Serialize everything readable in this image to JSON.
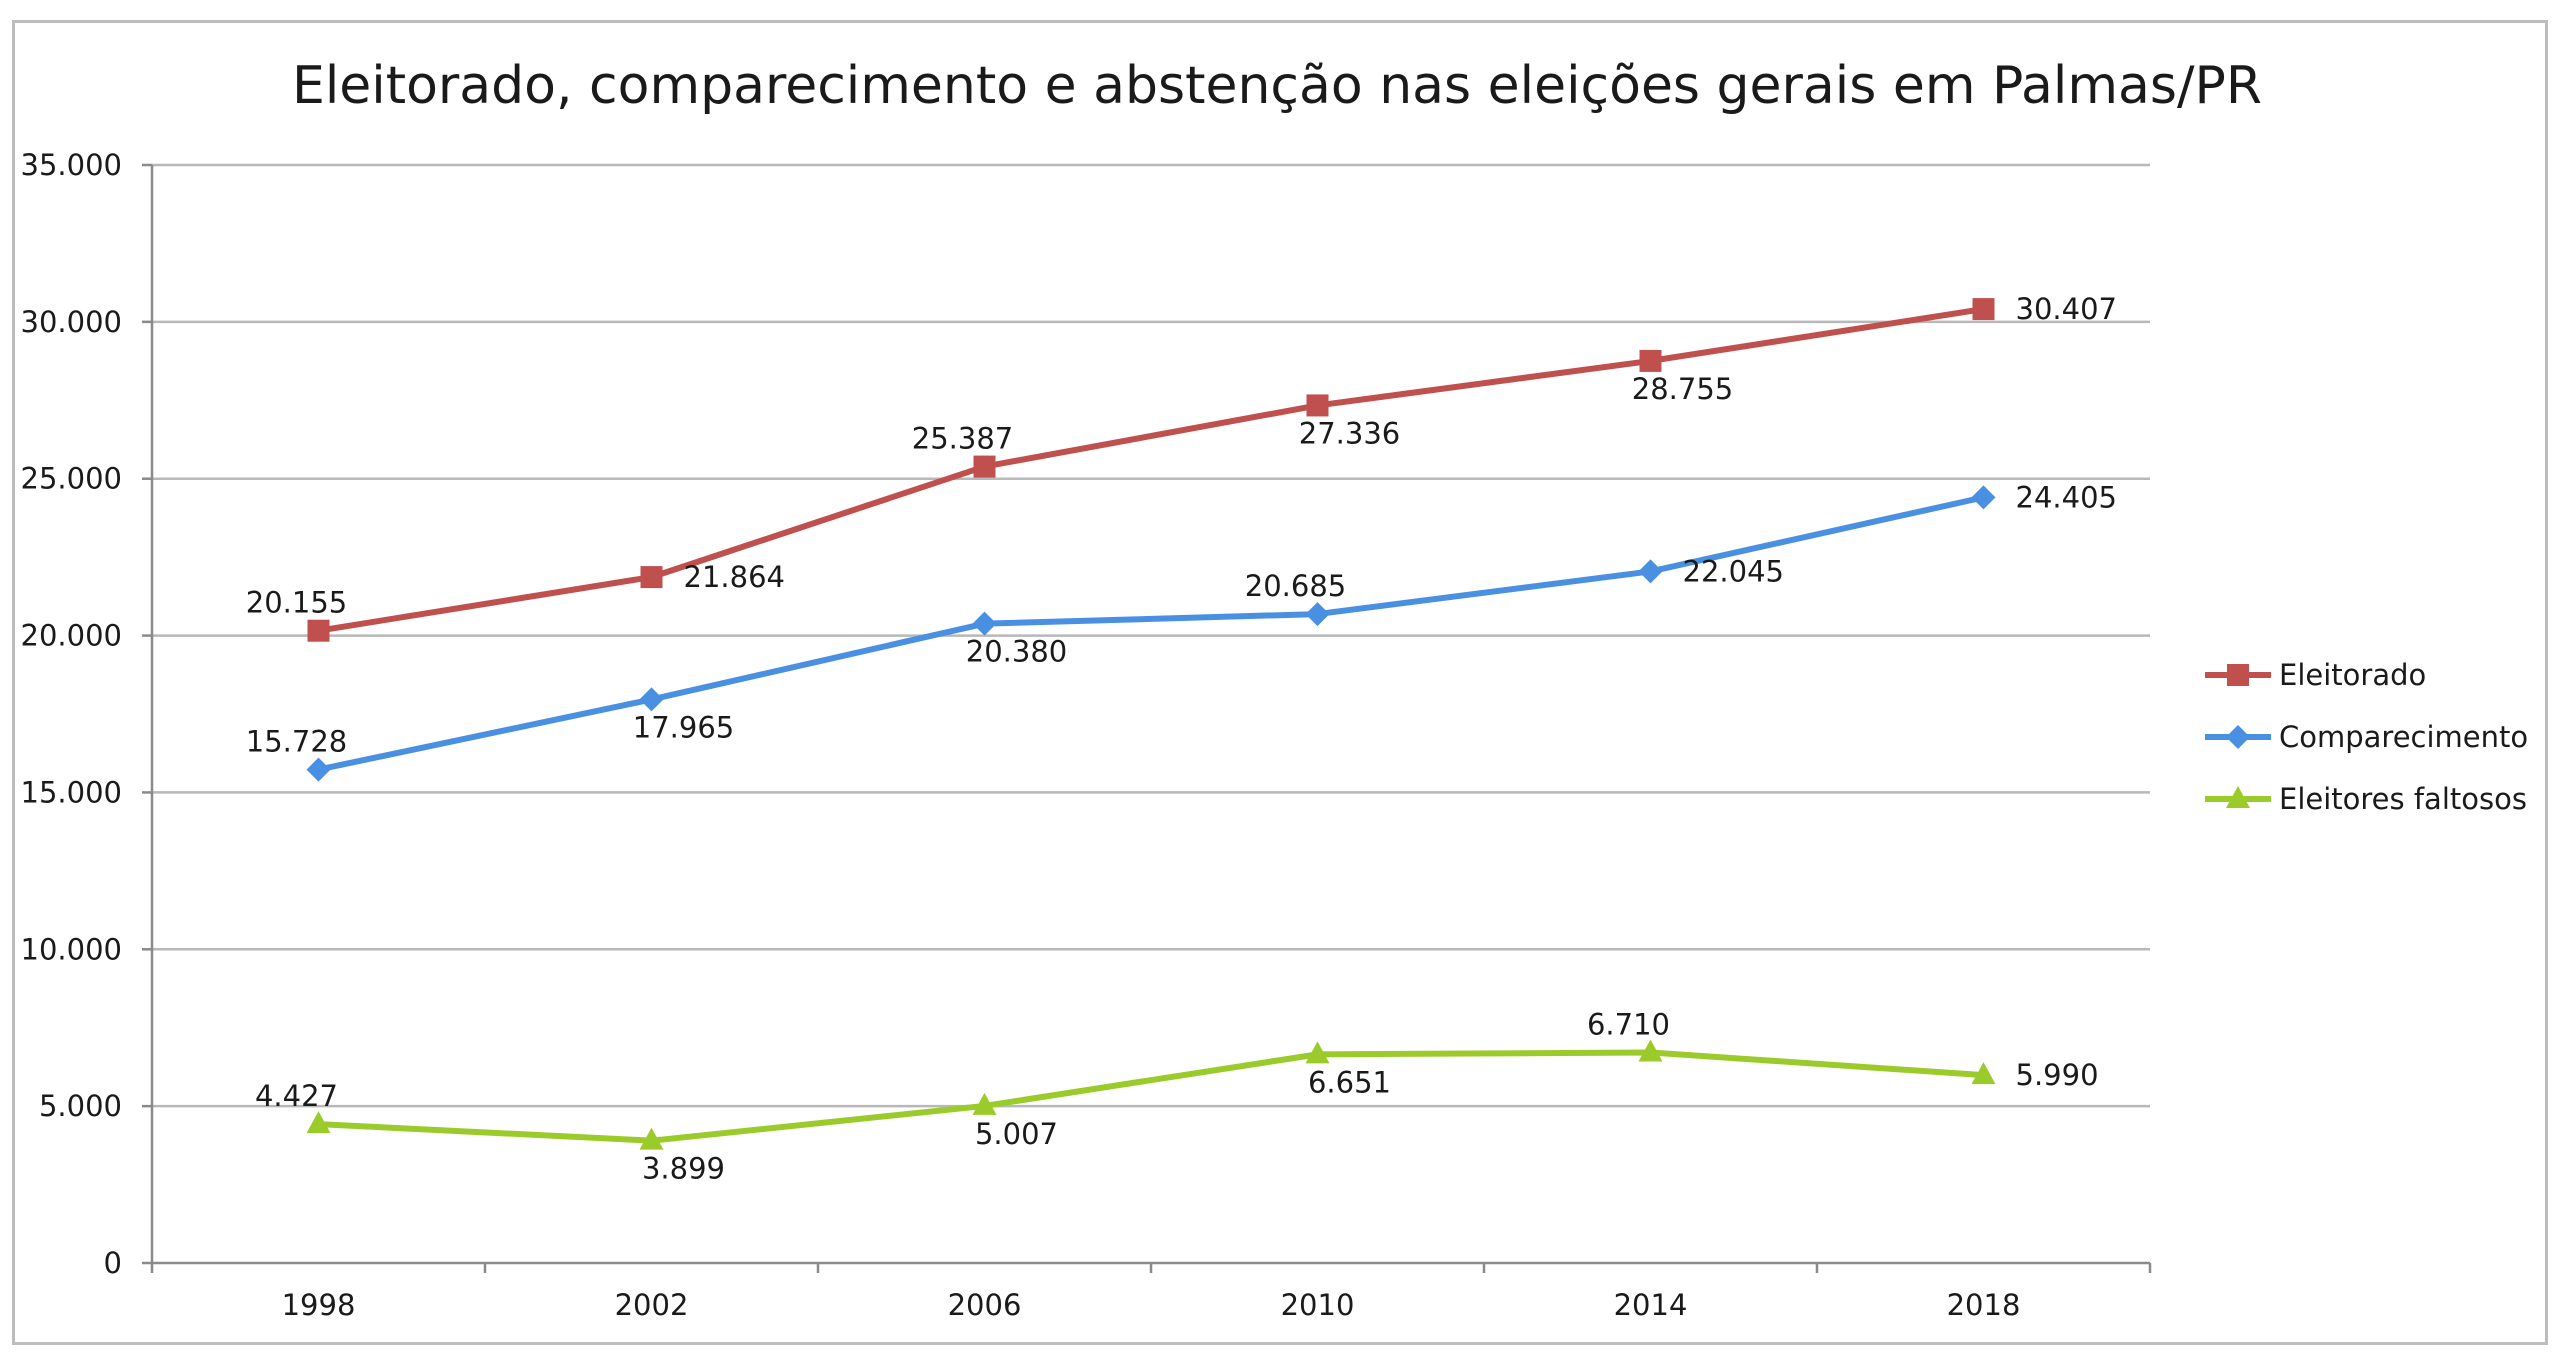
{
  "chart_data": {
    "type": "line",
    "title": "Eleitorado, comparecimento e abstenção nas eleições gerais em Palmas/PR",
    "xlabel": "",
    "ylabel": "",
    "categories": [
      "1998",
      "2002",
      "2006",
      "2010",
      "2014",
      "2018"
    ],
    "ylim": [
      0,
      35000
    ],
    "y_ticks": [
      0,
      5000,
      10000,
      15000,
      20000,
      25000,
      30000,
      35000
    ],
    "y_tick_labels": [
      "0",
      "5.000",
      "10.000",
      "15.000",
      "20.000",
      "25.000",
      "30.000",
      "35.000"
    ],
    "grid": "horizontal",
    "legend_position": "right",
    "series": [
      {
        "name": "Eleitorado",
        "color": "#c0504d",
        "marker": "square",
        "values": [
          20155,
          21864,
          25387,
          27336,
          28755,
          30407
        ],
        "labels": [
          "20.155",
          "21.864",
          "25.387",
          "27.336",
          "28.755",
          "30.407"
        ]
      },
      {
        "name": "Comparecimento",
        "color": "#4a90e2",
        "marker": "diamond",
        "values": [
          15728,
          17965,
          20380,
          20685,
          22045,
          24405
        ],
        "labels": [
          "15.728",
          "17.965",
          "20.380",
          "20.685",
          "22.045",
          "24.405"
        ]
      },
      {
        "name": "Eleitores faltosos",
        "color": "#9bcb2a",
        "marker": "triangle",
        "values": [
          4427,
          3899,
          5007,
          6651,
          6710,
          5990
        ],
        "labels": [
          "4.427",
          "3.899",
          "5.007",
          "6.651",
          "6.710",
          "5.990"
        ]
      }
    ]
  }
}
